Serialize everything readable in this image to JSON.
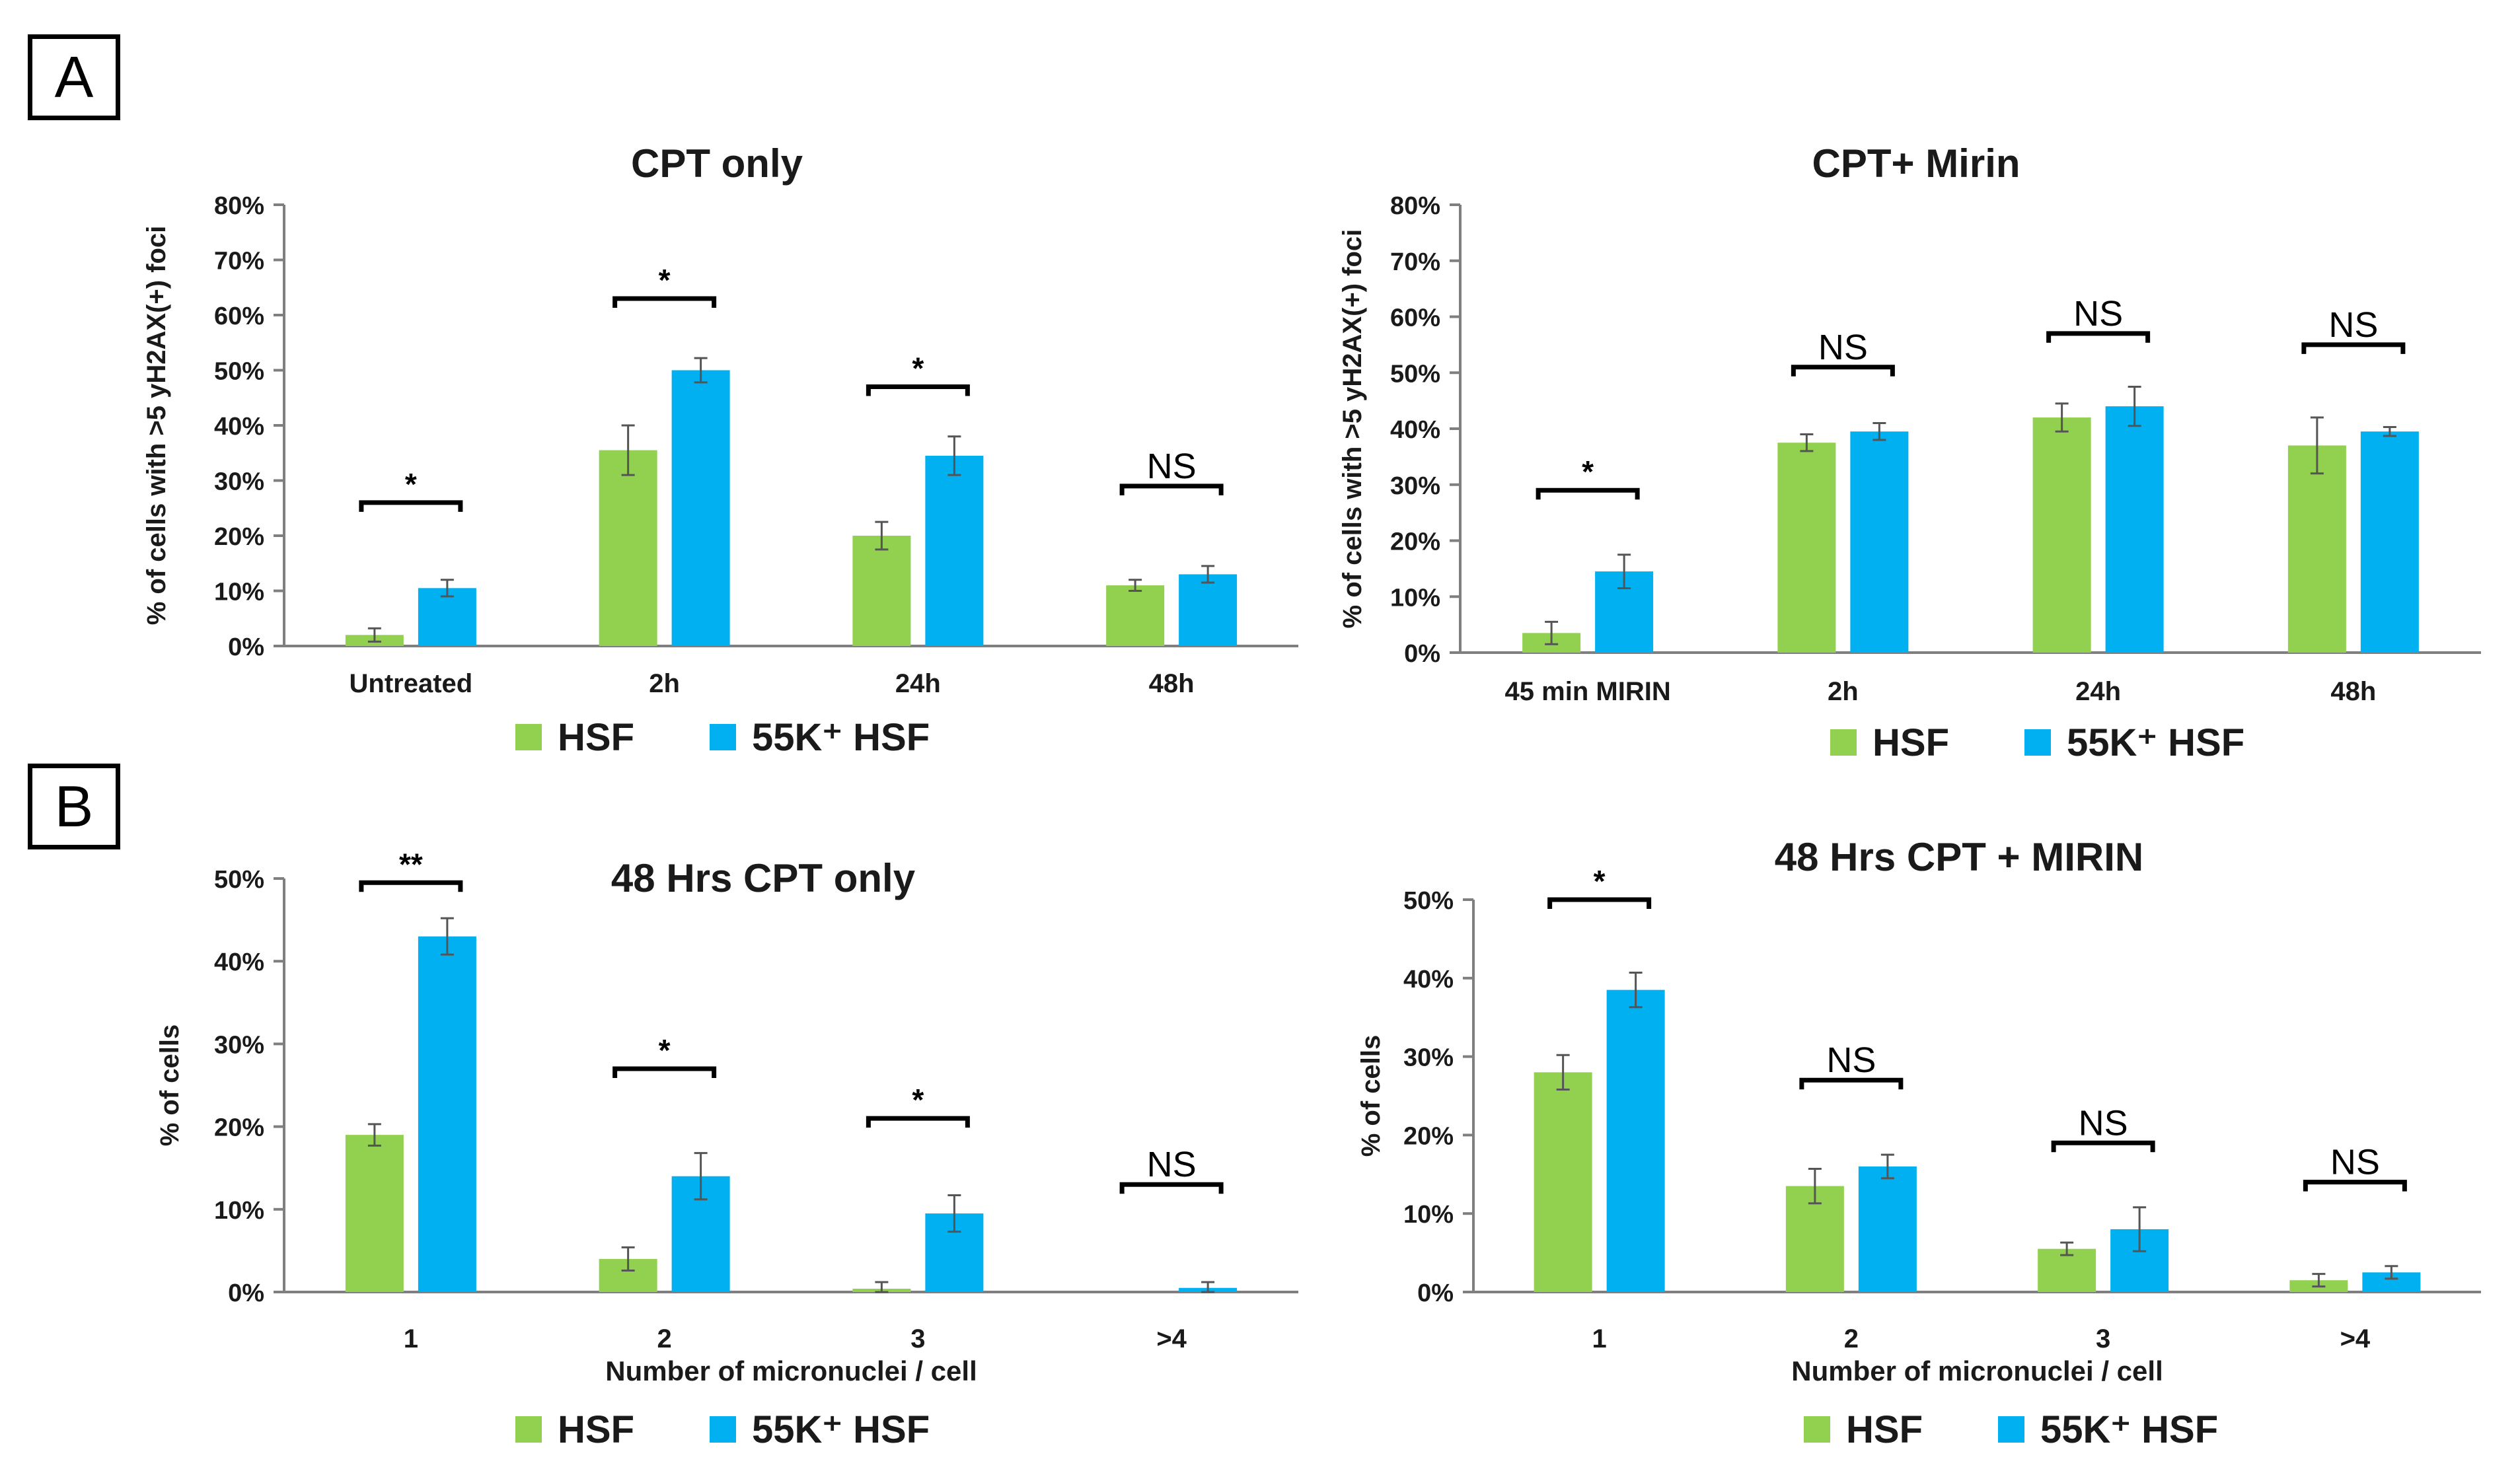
{
  "panels": {
    "a_label": "A",
    "b_label": "B"
  },
  "colors": {
    "hsf": "#92d050",
    "k55": "#00b0f0",
    "axis": "#7f7f7f",
    "text": "#1a1a1a",
    "bracket": "#000000"
  },
  "legend": {
    "hsf": "HSF",
    "k55": "55K⁺ HSF"
  },
  "chart_data": [
    {
      "id": "a-left",
      "type": "bar",
      "title": "CPT only",
      "xlabel": "",
      "ylabel": "% of cells with >5 yH2AX(+) foci",
      "ylim": [
        0,
        0.8
      ],
      "yticks": [
        "0%",
        "10%",
        "20%",
        "30%",
        "40%",
        "50%",
        "60%",
        "70%",
        "80%"
      ],
      "categories": [
        "Untreated",
        "2h",
        "24h",
        "48h"
      ],
      "series": [
        {
          "name": "HSF",
          "values": [
            0.02,
            0.355,
            0.2,
            0.11
          ],
          "errors": [
            0.012,
            0.045,
            0.025,
            0.01
          ]
        },
        {
          "name": "55K⁺ HSF",
          "values": [
            0.105,
            0.5,
            0.345,
            0.13
          ],
          "errors": [
            0.015,
            0.022,
            0.035,
            0.015
          ]
        }
      ],
      "significance": [
        {
          "category": 0,
          "label": "*",
          "level": 0.26
        },
        {
          "category": 1,
          "label": "*",
          "level": 0.63
        },
        {
          "category": 2,
          "label": "*",
          "level": 0.47
        },
        {
          "category": 3,
          "label": "NS",
          "level": 0.29
        }
      ]
    },
    {
      "id": "a-right",
      "type": "bar",
      "title": "CPT+ Mirin",
      "xlabel": "",
      "ylabel": "% of cells with >5 yH2AX(+) foci",
      "ylim": [
        0,
        0.8
      ],
      "yticks": [
        "0%",
        "10%",
        "20%",
        "30%",
        "40%",
        "50%",
        "60%",
        "70%",
        "80%"
      ],
      "categories": [
        "45 min MIRIN",
        "2h",
        "24h",
        "48h"
      ],
      "series": [
        {
          "name": "HSF",
          "values": [
            0.035,
            0.375,
            0.42,
            0.37
          ],
          "errors": [
            0.02,
            0.015,
            0.025,
            0.05
          ]
        },
        {
          "name": "55K⁺ HSF",
          "values": [
            0.145,
            0.395,
            0.44,
            0.395
          ],
          "errors": [
            0.03,
            0.015,
            0.035,
            0.008
          ]
        }
      ],
      "significance": [
        {
          "category": 0,
          "label": "*",
          "level": 0.29
        },
        {
          "category": 1,
          "label": "NS",
          "level": 0.51
        },
        {
          "category": 2,
          "label": "NS",
          "level": 0.57
        },
        {
          "category": 3,
          "label": "NS",
          "level": 0.55
        }
      ]
    },
    {
      "id": "b-left",
      "type": "bar",
      "title": "48 Hrs CPT only",
      "xlabel": "Number of micronuclei / cell",
      "ylabel": "% of cells",
      "ylim": [
        0,
        0.5
      ],
      "yticks": [
        "0%",
        "10%",
        "20%",
        "30%",
        "40%",
        "50%"
      ],
      "categories": [
        "1",
        "2",
        "3",
        ">4"
      ],
      "series": [
        {
          "name": "HSF",
          "values": [
            0.19,
            0.04,
            0.004,
            0.0
          ],
          "errors": [
            0.013,
            0.014,
            0.008,
            0.0
          ]
        },
        {
          "name": "55K⁺ HSF",
          "values": [
            0.43,
            0.14,
            0.095,
            0.005
          ],
          "errors": [
            0.022,
            0.028,
            0.022,
            0.007
          ]
        }
      ],
      "significance": [
        {
          "category": 0,
          "label": "**",
          "level": 0.495
        },
        {
          "category": 1,
          "label": "*",
          "level": 0.27
        },
        {
          "category": 2,
          "label": "*",
          "level": 0.21
        },
        {
          "category": 3,
          "label": "NS",
          "level": 0.13
        }
      ]
    },
    {
      "id": "b-right",
      "type": "bar",
      "title": "48 Hrs CPT + MIRIN",
      "xlabel": "Number of micronuclei / cell",
      "ylabel": "% of cells",
      "ylim": [
        0,
        0.5
      ],
      "yticks": [
        "0%",
        "10%",
        "20%",
        "30%",
        "40%",
        "50%"
      ],
      "categories": [
        "1",
        "2",
        "3",
        ">4"
      ],
      "series": [
        {
          "name": "HSF",
          "values": [
            0.28,
            0.135,
            0.055,
            0.015
          ],
          "errors": [
            0.022,
            0.022,
            0.008,
            0.008
          ]
        },
        {
          "name": "55K⁺ HSF",
          "values": [
            0.385,
            0.16,
            0.08,
            0.025
          ],
          "errors": [
            0.022,
            0.015,
            0.028,
            0.008
          ]
        }
      ],
      "significance": [
        {
          "category": 0,
          "label": "*",
          "level": 0.5
        },
        {
          "category": 1,
          "label": "NS",
          "level": 0.27
        },
        {
          "category": 2,
          "label": "NS",
          "level": 0.19
        },
        {
          "category": 3,
          "label": "NS",
          "level": 0.14
        }
      ]
    }
  ]
}
